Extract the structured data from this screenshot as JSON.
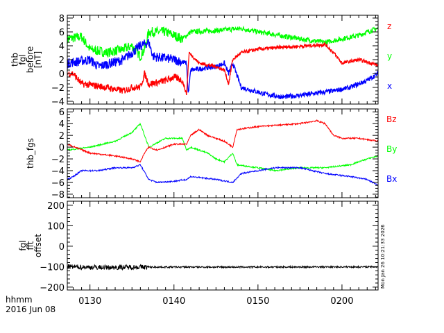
{
  "footer": {
    "x_label": "hhmm",
    "date": "2016 Jun 08",
    "timestamp": "Mon Jan 26 10:21:33 2026"
  },
  "x_axis": {
    "range_minutes_after_0100": [
      27.3,
      64.3
    ],
    "ticks": [
      30,
      40,
      50,
      60
    ],
    "tick_labels": [
      "0130",
      "0140",
      "0150",
      "0200"
    ]
  },
  "chart_data": [
    {
      "type": "line",
      "ylabel": [
        "thb",
        "fgl",
        "before",
        "[nT]"
      ],
      "ylim": [
        -4.4,
        8.4
      ],
      "yticks": [
        8,
        6,
        4,
        2,
        0,
        -2,
        -4
      ],
      "ytick_labels": [
        "8",
        "6",
        "4",
        "2",
        "0",
        "−2",
        "−4"
      ],
      "series": [
        {
          "name": "y",
          "color": "#00ff00",
          "noise": 0.35,
          "points": [
            [
              27.3,
              5
            ],
            [
              29,
              5.3
            ],
            [
              30,
              3.5
            ],
            [
              32,
              3
            ],
            [
              34,
              3.5
            ],
            [
              35,
              4
            ],
            [
              36,
              2.5
            ],
            [
              36.5,
              3.5
            ],
            [
              37,
              6
            ],
            [
              39,
              6
            ],
            [
              40,
              5.5
            ],
            [
              41,
              5
            ],
            [
              41.5,
              5.5
            ],
            [
              42,
              6
            ],
            [
              45,
              6.2
            ],
            [
              48,
              6.5
            ],
            [
              50,
              6
            ],
            [
              55,
              5
            ],
            [
              58,
              4.5
            ],
            [
              60,
              5
            ],
            [
              62,
              5.5
            ],
            [
              63,
              6
            ],
            [
              64.3,
              6.5
            ]
          ]
        },
        {
          "name": "x",
          "color": "#0000ff",
          "noise": 0.35,
          "points": [
            [
              27.3,
              1.5
            ],
            [
              30,
              2
            ],
            [
              31,
              1
            ],
            [
              34,
              2
            ],
            [
              36,
              4
            ],
            [
              37,
              4.5
            ],
            [
              37.5,
              2.5
            ],
            [
              40,
              2
            ],
            [
              41.5,
              1.5
            ],
            [
              41.7,
              -3
            ],
            [
              42,
              0.5
            ],
            [
              45,
              1
            ],
            [
              46,
              1.5
            ],
            [
              46.5,
              0
            ],
            [
              47,
              1.5
            ],
            [
              48,
              -2
            ],
            [
              51,
              -3
            ],
            [
              53,
              -3.4
            ],
            [
              56,
              -3
            ],
            [
              59,
              -2.5
            ],
            [
              61,
              -2
            ],
            [
              63,
              -1
            ],
            [
              64.3,
              0
            ]
          ]
        },
        {
          "name": "z",
          "color": "#ff0000",
          "noise": 0.25,
          "points": [
            [
              27.3,
              0
            ],
            [
              28,
              0
            ],
            [
              29,
              -1.5
            ],
            [
              31,
              -1.8
            ],
            [
              34,
              -2.5
            ],
            [
              35,
              -2
            ],
            [
              36,
              -2
            ],
            [
              36.5,
              0
            ],
            [
              37,
              -1.5
            ],
            [
              38,
              -1.3
            ],
            [
              39,
              -1
            ],
            [
              40,
              -0.5
            ],
            [
              41,
              -1
            ],
            [
              41.5,
              -3
            ],
            [
              41.8,
              3
            ],
            [
              43,
              1.5
            ],
            [
              45,
              1
            ],
            [
              46,
              0.5
            ],
            [
              46.5,
              -1.5
            ],
            [
              47,
              2
            ],
            [
              48,
              3
            ],
            [
              50,
              3.5
            ],
            [
              53,
              3.8
            ],
            [
              56,
              4
            ],
            [
              58,
              4.2
            ],
            [
              59,
              3
            ],
            [
              60,
              1.5
            ],
            [
              62,
              2
            ],
            [
              64.3,
              1.2
            ]
          ]
        }
      ],
      "legend": [
        {
          "label": "z",
          "color": "#ff0000"
        },
        {
          "label": "y",
          "color": "#00ff00"
        },
        {
          "label": "x",
          "color": "#0000ff"
        }
      ]
    },
    {
      "type": "line",
      "ylabel": [
        "thb_fgs"
      ],
      "ylim": [
        -8.6,
        6.5
      ],
      "yticks": [
        6,
        4,
        2,
        0,
        -2,
        -4,
        -6,
        -8
      ],
      "ytick_labels": [
        "6",
        "4",
        "2",
        "0",
        "−2",
        "−4",
        "−6",
        "−8"
      ],
      "series": [
        {
          "name": "By",
          "color": "#00ff00",
          "noise": 0.12,
          "points": [
            [
              27.3,
              -0.5
            ],
            [
              30,
              0
            ],
            [
              33,
              1
            ],
            [
              35,
              2.5
            ],
            [
              36,
              4
            ],
            [
              36.5,
              2
            ],
            [
              37,
              0
            ],
            [
              39,
              1.5
            ],
            [
              41,
              1.5
            ],
            [
              41.5,
              -0.5
            ],
            [
              42,
              0
            ],
            [
              44,
              -1
            ],
            [
              45,
              -2
            ],
            [
              46,
              -2.5
            ],
            [
              47,
              -1
            ],
            [
              47.5,
              -3
            ],
            [
              50,
              -3.5
            ],
            [
              52,
              -4
            ],
            [
              55,
              -3.5
            ],
            [
              58,
              -3.5
            ],
            [
              61,
              -3
            ],
            [
              63,
              -2
            ],
            [
              64.3,
              -1.5
            ]
          ]
        },
        {
          "name": "Bz",
          "color": "#ff0000",
          "noise": 0.12,
          "points": [
            [
              27.3,
              0.5
            ],
            [
              30,
              -1
            ],
            [
              33,
              -1.5
            ],
            [
              35,
              -2
            ],
            [
              36,
              -2.5
            ],
            [
              36.5,
              -1
            ],
            [
              37,
              0
            ],
            [
              38,
              -0.5
            ],
            [
              40,
              0.5
            ],
            [
              41.5,
              0.5
            ],
            [
              42,
              2
            ],
            [
              43,
              3
            ],
            [
              44,
              2
            ],
            [
              46,
              1
            ],
            [
              47,
              0
            ],
            [
              47.5,
              3
            ],
            [
              50,
              3.5
            ],
            [
              55,
              4
            ],
            [
              57,
              4.5
            ],
            [
              58,
              4
            ],
            [
              59,
              2
            ],
            [
              60,
              1.5
            ],
            [
              62,
              1.5
            ],
            [
              64.3,
              1
            ]
          ]
        },
        {
          "name": "Bx",
          "color": "#0000ff",
          "noise": 0.12,
          "points": [
            [
              27.3,
              -5.5
            ],
            [
              28,
              -5
            ],
            [
              29,
              -4
            ],
            [
              31,
              -4
            ],
            [
              33,
              -3.5
            ],
            [
              35,
              -3.5
            ],
            [
              36,
              -3
            ],
            [
              37,
              -5.5
            ],
            [
              38,
              -6
            ],
            [
              40,
              -5.8
            ],
            [
              41.5,
              -5.5
            ],
            [
              42,
              -5
            ],
            [
              45,
              -5.5
            ],
            [
              47,
              -6
            ],
            [
              48,
              -4.5
            ],
            [
              50,
              -4
            ],
            [
              52,
              -3.5
            ],
            [
              55,
              -3.5
            ],
            [
              58,
              -4.5
            ],
            [
              61,
              -5
            ],
            [
              63,
              -5.5
            ],
            [
              64.3,
              -6.5
            ]
          ]
        }
      ],
      "legend": [
        {
          "label": "Bz",
          "color": "#ff0000"
        },
        {
          "label": "By",
          "color": "#00ff00"
        },
        {
          "label": "Bx",
          "color": "#0000ff"
        }
      ]
    },
    {
      "type": "line",
      "ylabel": [
        "fgl",
        "fft",
        "offset"
      ],
      "ylim": [
        -214,
        220
      ],
      "yticks": [
        200,
        100,
        0,
        -100,
        -200
      ],
      "ytick_labels": [
        "200",
        "100",
        "0",
        "−100",
        "−200"
      ],
      "series": [
        {
          "name": "offset",
          "color": "#000000",
          "noise": 4,
          "points": [
            [
              27.3,
              -100
            ],
            [
              29,
              -102
            ],
            [
              32,
              -104
            ],
            [
              35,
              -102
            ],
            [
              40,
              -102
            ],
            [
              50,
              -102
            ],
            [
              64.3,
              -101
            ]
          ]
        }
      ],
      "legend": []
    }
  ]
}
